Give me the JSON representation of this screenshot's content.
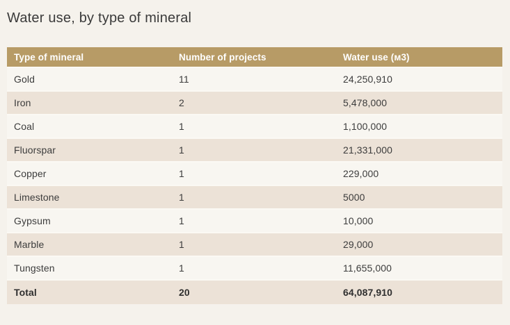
{
  "page": {
    "title": "Water use, by type of mineral"
  },
  "colors": {
    "page_bg": "#f5f2ec",
    "header_bg": "#b79b66",
    "header_text": "#ffffff",
    "row_bg": "#f8f6f1",
    "row_alt_bg": "#ece2d7",
    "body_text": "#3c3c3c"
  },
  "table": {
    "columns": [
      "Type of mineral",
      "Number of projects",
      "Water use (м3)"
    ],
    "rows": [
      {
        "mineral": "Gold",
        "projects": "11",
        "water_use": "24,250,910"
      },
      {
        "mineral": "Iron",
        "projects": "2",
        "water_use": "5,478,000"
      },
      {
        "mineral": "Coal",
        "projects": "1",
        "water_use": "1,100,000"
      },
      {
        "mineral": "Fluorspar",
        "projects": "1",
        "water_use": "21,331,000"
      },
      {
        "mineral": "Copper",
        "projects": "1",
        "water_use": "229,000"
      },
      {
        "mineral": "Limestone",
        "projects": "1",
        "water_use": "5000"
      },
      {
        "mineral": "Gypsum",
        "projects": "1",
        "water_use": "10,000"
      },
      {
        "mineral": "Marble",
        "projects": "1",
        "water_use": "29,000"
      },
      {
        "mineral": "Tungsten",
        "projects": "1",
        "water_use": "11,655,000"
      }
    ],
    "total": {
      "mineral": "Total",
      "projects": "20",
      "water_use": "64,087,910"
    }
  },
  "chart_data": {
    "type": "table",
    "title": "Water use, by type of mineral",
    "columns": [
      "Type of mineral",
      "Number of projects",
      "Water use (м3)"
    ],
    "rows": [
      [
        "Gold",
        11,
        24250910
      ],
      [
        "Iron",
        2,
        5478000
      ],
      [
        "Coal",
        1,
        1100000
      ],
      [
        "Fluorspar",
        1,
        21331000
      ],
      [
        "Copper",
        1,
        229000
      ],
      [
        "Limestone",
        1,
        5000
      ],
      [
        "Gypsum",
        1,
        10000
      ],
      [
        "Marble",
        1,
        29000
      ],
      [
        "Tungsten",
        1,
        11655000
      ]
    ],
    "total": [
      "Total",
      20,
      64087910
    ]
  }
}
